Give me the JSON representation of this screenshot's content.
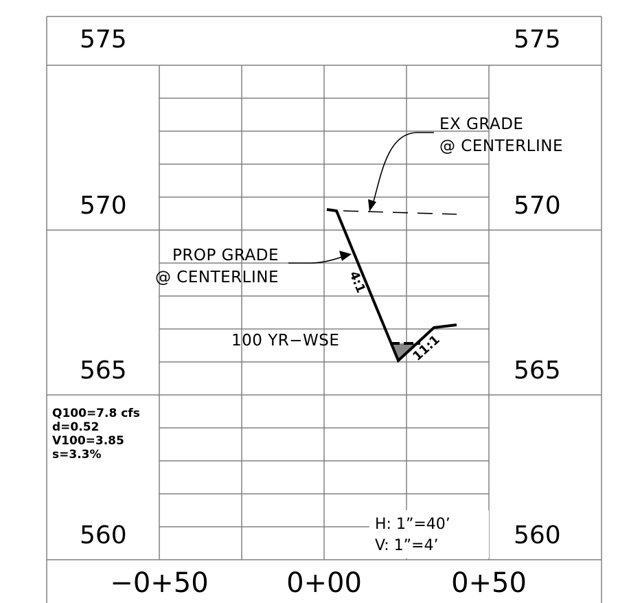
{
  "elevation_labels": {
    "left": [
      "575",
      "570",
      "565",
      "560"
    ],
    "right": [
      "575",
      "570",
      "565",
      "560"
    ]
  },
  "station_labels": [
    "−0+50",
    "0+00",
    "0+50"
  ],
  "callouts": {
    "existing_grade": [
      "EX GRADE",
      "@ CENTERLINE"
    ],
    "proposed_grade": [
      "PROP GRADE",
      "@ CENTERLINE"
    ],
    "water_surface": "100 YR−WSE"
  },
  "slope_labels": {
    "left_side": "4:1",
    "right_side": "11:1"
  },
  "hydraulics": {
    "q100": "Q100=7.8 cfs",
    "depth": "d=0.52",
    "v100": "V100=3.85",
    "slope": "s=3.3%"
  },
  "scale": {
    "horizontal": "H:  1”=40’",
    "vertical": "V:  1”=4’"
  },
  "colors": {
    "line": "#000000",
    "grid": "#808080",
    "water_fill": "#888888",
    "background": "#ffffff"
  }
}
